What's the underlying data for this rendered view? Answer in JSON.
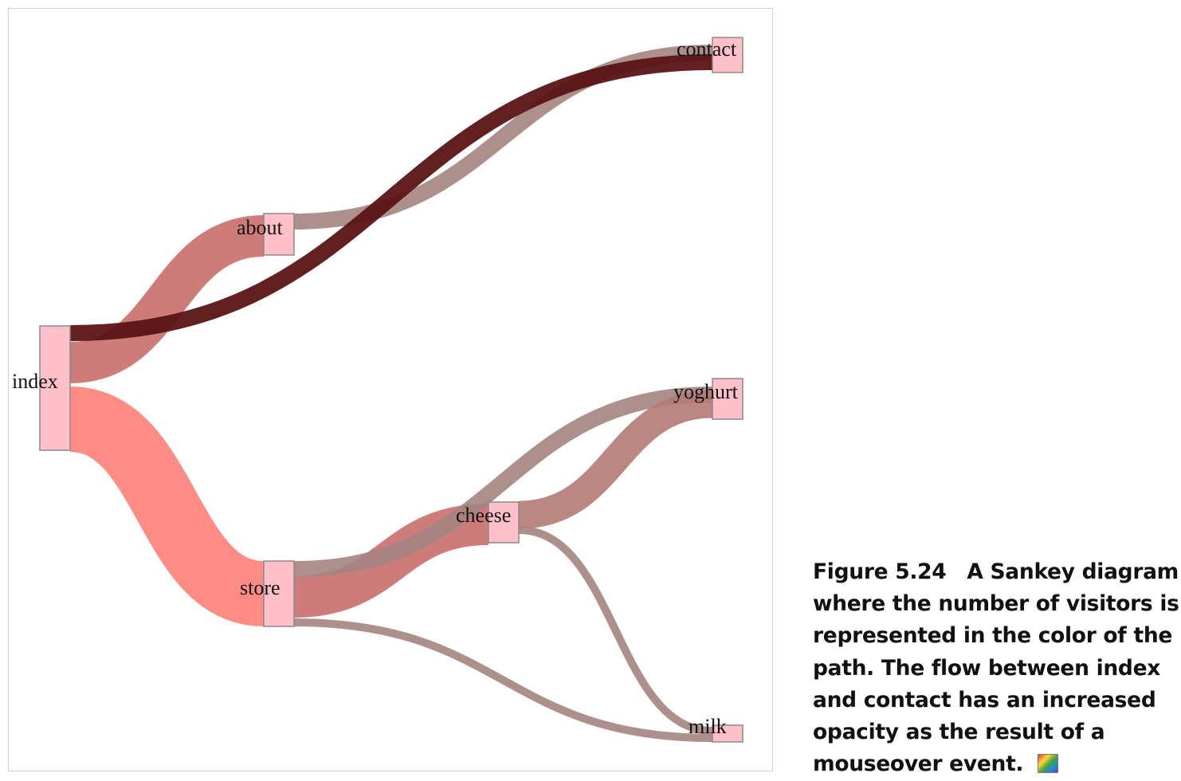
{
  "nodes": [
    {
      "id": "index",
      "label": "index",
      "color": "#ffc0cb"
    },
    {
      "id": "about",
      "label": "about",
      "color": "#ffc0cb"
    },
    {
      "id": "contact",
      "label": "contact",
      "color": "#ffc0cb"
    },
    {
      "id": "store",
      "label": "store",
      "color": "#ffc0cb"
    },
    {
      "id": "cheese",
      "label": "cheese",
      "color": "#ffc0cb"
    },
    {
      "id": "yoghurt",
      "label": "yoghurt",
      "color": "#ffc0cb"
    },
    {
      "id": "milk",
      "label": "milk",
      "color": "#ffc0cb"
    }
  ],
  "links": [
    {
      "source": "index",
      "target": "contact",
      "color": "#5a1414",
      "highlighted": true
    },
    {
      "source": "index",
      "target": "about",
      "color": "#c86e6a",
      "highlighted": false
    },
    {
      "source": "index",
      "target": "store",
      "color": "#ff7f77",
      "highlighted": false
    },
    {
      "source": "about",
      "target": "contact",
      "color": "#a48480",
      "highlighted": false
    },
    {
      "source": "store",
      "target": "cheese",
      "color": "#c86e6a",
      "highlighted": false
    },
    {
      "source": "store",
      "target": "yoghurt",
      "color": "#a48480",
      "highlighted": false
    },
    {
      "source": "store",
      "target": "milk",
      "color": "#a48480",
      "highlighted": false
    },
    {
      "source": "cheese",
      "target": "yoghurt",
      "color": "#b27a76",
      "highlighted": false
    },
    {
      "source": "cheese",
      "target": "milk",
      "color": "#a48480",
      "highlighted": false
    }
  ],
  "caption": {
    "number": "Figure 5.24",
    "text": "A Sankey diagram where the number of visitors is represented in the color of the path. The flow between index and contact has an increased opacity as the result of a mouseover event.",
    "icon": "color-palette-icon"
  }
}
